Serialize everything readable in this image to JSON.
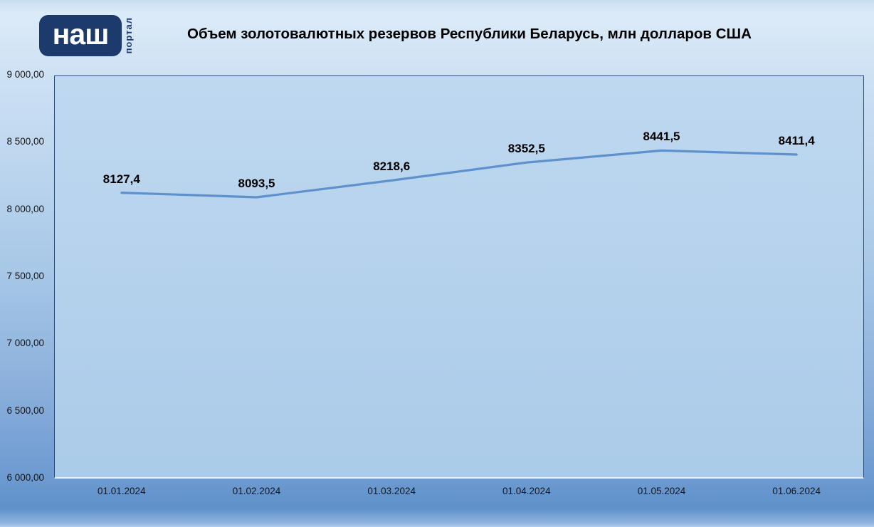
{
  "header": {
    "logo": {
      "main": "наш",
      "sub": "портал"
    },
    "title": "Объем золотовалютных резервов Республики Беларусь, млн долларов США"
  },
  "chart_data": {
    "type": "line",
    "title": "Объем золотовалютных резервов Республики Беларусь, млн долларов США",
    "categories": [
      "01.01.2024",
      "01.02.2024",
      "01.03.2024",
      "01.04.2024",
      "01.05.2024",
      "01.06.2024"
    ],
    "values": [
      8127.4,
      8093.5,
      8218.6,
      8352.5,
      8441.5,
      8411.4
    ],
    "data_labels": [
      "8127,4",
      "8093,5",
      "8218,6",
      "8352,5",
      "8441,5",
      "8411,4"
    ],
    "xlabel": "",
    "ylabel": "",
    "ylim": [
      6000,
      9000
    ],
    "y_tick_step": 500,
    "y_tick_labels": [
      "6 000,00",
      "6 500,00",
      "7 000,00",
      "7 500,00",
      "8 000,00",
      "8 500,00",
      "9 000,00"
    ],
    "grid": false,
    "legend": "none",
    "line_color": "#5e91cd"
  },
  "colors": {
    "logo_navy": "#1d3a6d",
    "plot_border": "#2a4a78",
    "plot_fill": "#b4d1ec",
    "background_top": "#dcebf8",
    "background_bottom": "#5f91ca",
    "label_text": "#000000"
  }
}
